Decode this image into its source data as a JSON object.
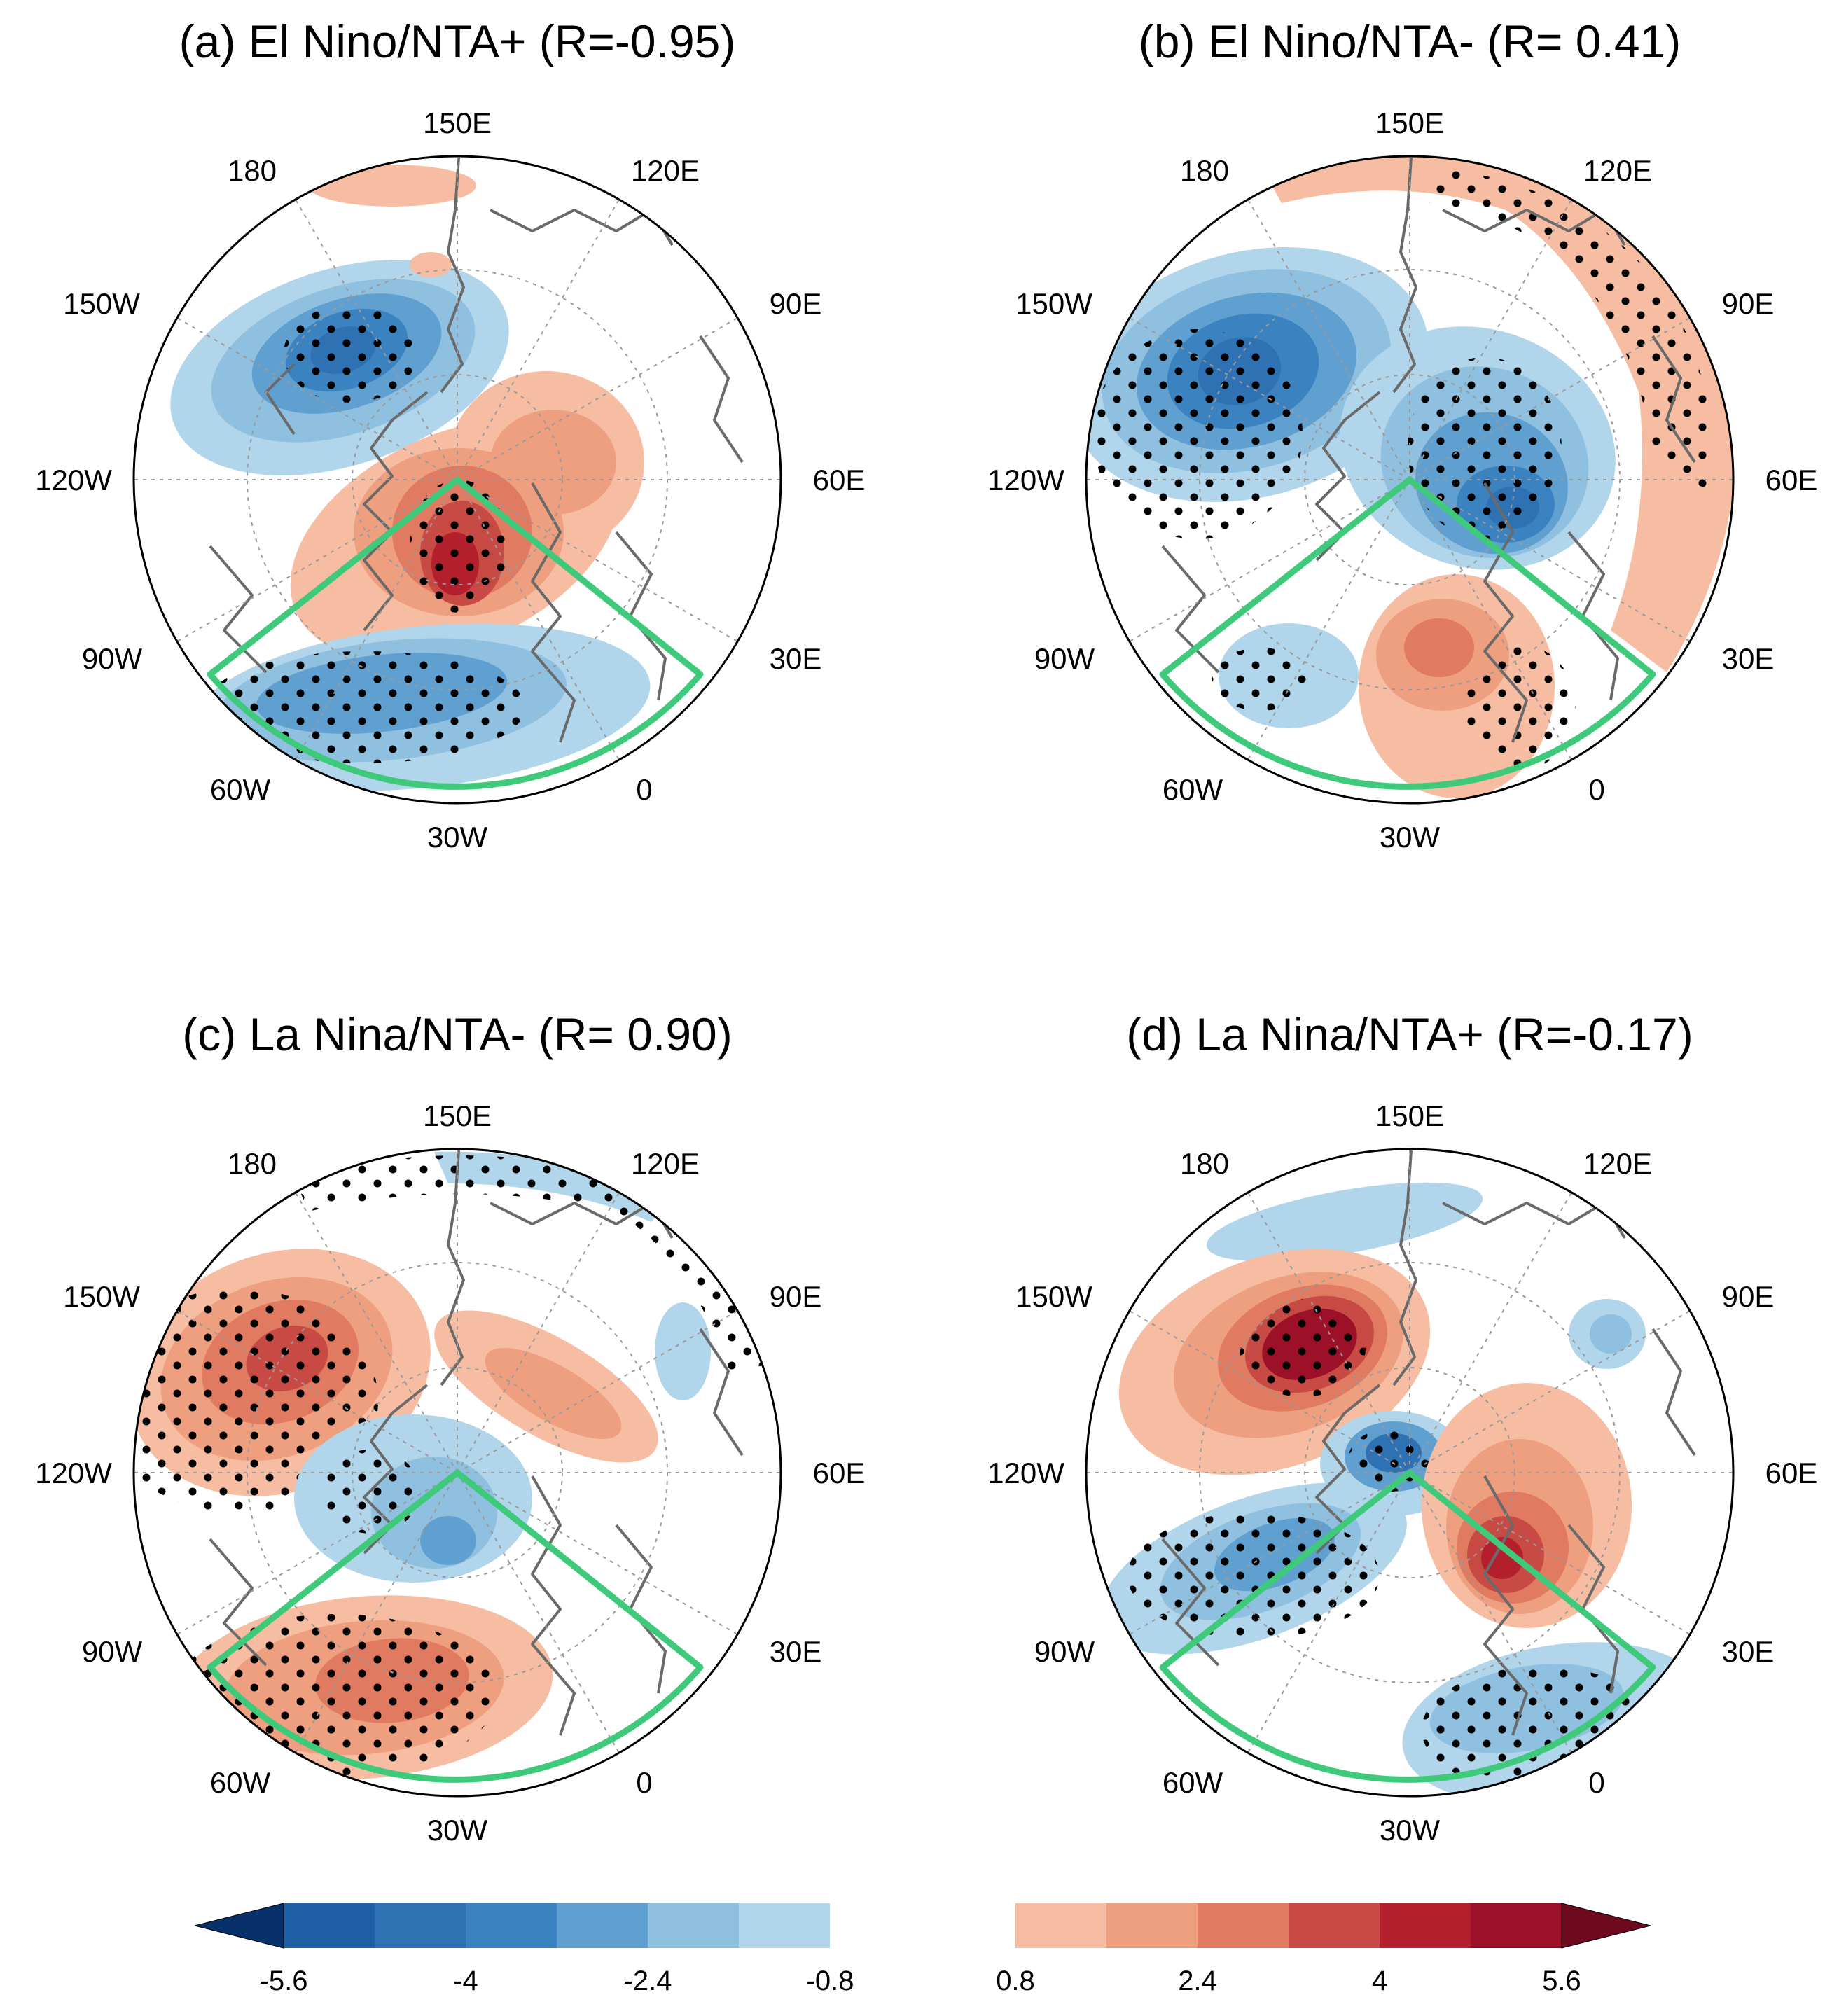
{
  "figure": "four-panel polar stereographic composite maps",
  "panels": [
    {
      "id": "a",
      "title": "(a) El Nino/NTA+ (R=-0.95)"
    },
    {
      "id": "b",
      "title": "(b) El Nino/NTA- (R= 0.41)"
    },
    {
      "id": "c",
      "title": "(c) La Nina/NTA- (R= 0.90)"
    },
    {
      "id": "d",
      "title": "(d) La Nina/NTA+ (R=-0.17)"
    }
  ],
  "longitude_labels": [
    "150E",
    "120E",
    "90E",
    "60E",
    "30E",
    "0",
    "30W",
    "60W",
    "90W",
    "120W",
    "150W",
    "180"
  ],
  "colorbar": {
    "negative_labels": [
      "-5.6",
      "-4",
      "-2.4",
      "-0.8"
    ],
    "positive_labels": [
      "0.8",
      "2.4",
      "4",
      "5.6"
    ],
    "negative_colors": [
      "#08306b",
      "#1f5fa6",
      "#2f72b4",
      "#3b83c0",
      "#5fa0d0",
      "#8fc0e0",
      "#b1d5ea"
    ],
    "positive_colors": [
      "#f6bda3",
      "#ee9f7f",
      "#e07a60",
      "#c84a44",
      "#b41f2e",
      "#9c1128",
      "#6e0a1e"
    ]
  },
  "sector_color": "#3fc97a"
}
